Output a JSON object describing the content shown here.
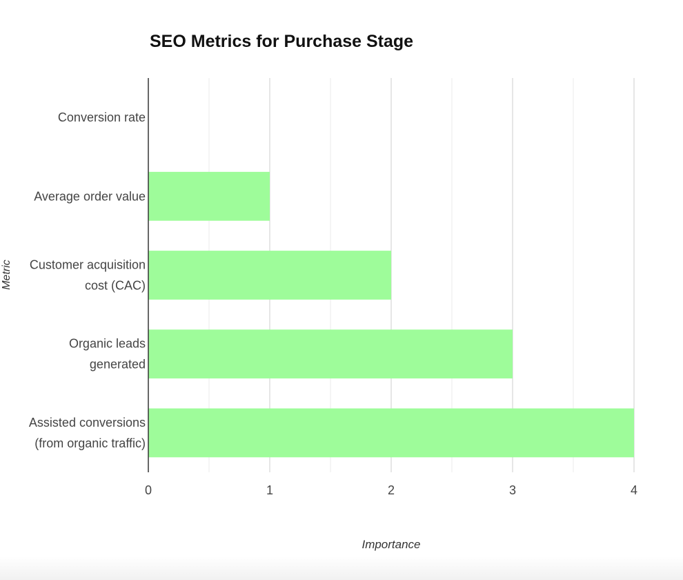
{
  "chart_data": {
    "type": "bar",
    "orientation": "horizontal",
    "title": "SEO Metrics for Purchase Stage",
    "xlabel": "Importance",
    "ylabel": "Metric",
    "categories": [
      [
        "Conversion rate"
      ],
      [
        "Average order value"
      ],
      [
        "Customer acquisition",
        "cost (CAC)"
      ],
      [
        "Organic leads",
        "generated"
      ],
      [
        "Assisted conversions",
        "(from organic traffic)"
      ]
    ],
    "values": [
      0,
      1,
      2,
      3,
      4
    ],
    "xlim": [
      0,
      4
    ],
    "xticks": [
      "0",
      "1",
      "2",
      "3",
      "4"
    ],
    "grid": true,
    "legend": "none",
    "colors": {
      "bar": "#9efc9a",
      "grid": "#cccccc",
      "minor_grid": "#ebebeb",
      "axis": "#333333",
      "text": "#444444"
    }
  }
}
